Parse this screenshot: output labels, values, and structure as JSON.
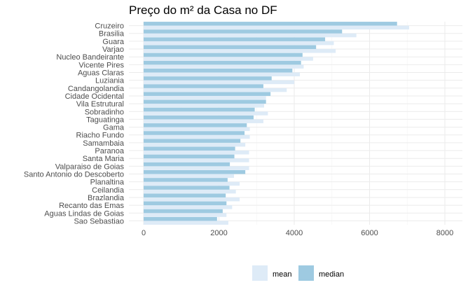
{
  "chart_data": {
    "type": "bar",
    "orientation": "horizontal",
    "title": "Preço do m² da Casa no DF",
    "xlabel": "",
    "ylabel": "",
    "xlim": [
      -300,
      8450
    ],
    "xticks": [
      0,
      2000,
      4000,
      6000,
      8000
    ],
    "xtick_labels": [
      "0",
      "2000",
      "4000",
      "6000",
      "8000"
    ],
    "grid": true,
    "legend_position": "bottom",
    "categories": [
      "Cruzeiro",
      "Brasilia",
      "Guara",
      "Varjao",
      "Nucleo Bandeirante",
      "Vicente Pires",
      "Aguas Claras",
      "Luziania",
      "Candangolandia",
      "Cidade Ocidental",
      "Vila Estrutural",
      "Sobradinho",
      "Taguatinga",
      "Gama",
      "Riacho Fundo",
      "Samambaia",
      "Paranoa",
      "Santa Maria",
      "Valparaiso de Goias",
      "Santo Antonio do Descoberto",
      "Planaltina",
      "Ceilandia",
      "Brazlandia",
      "Recanto das Emas",
      "Aguas Lindas de Goias",
      "Sao Sebastiao"
    ],
    "series": [
      {
        "name": "mean",
        "color": "#deebf7",
        "values": [
          7050,
          5650,
          5050,
          5100,
          4500,
          4250,
          4150,
          4000,
          3800,
          3250,
          3200,
          3300,
          3180,
          2820,
          2820,
          2700,
          2800,
          2800,
          2800,
          2400,
          2550,
          2450,
          2550,
          2350,
          2200,
          2250
        ]
      },
      {
        "name": "median",
        "color": "#9ecae1",
        "values": [
          6730,
          5270,
          4820,
          4580,
          4220,
          4180,
          3950,
          3400,
          3180,
          3370,
          3250,
          2950,
          2920,
          2740,
          2680,
          2570,
          2430,
          2410,
          2290,
          2700,
          2230,
          2280,
          2180,
          2200,
          2100,
          1950
        ]
      }
    ]
  }
}
